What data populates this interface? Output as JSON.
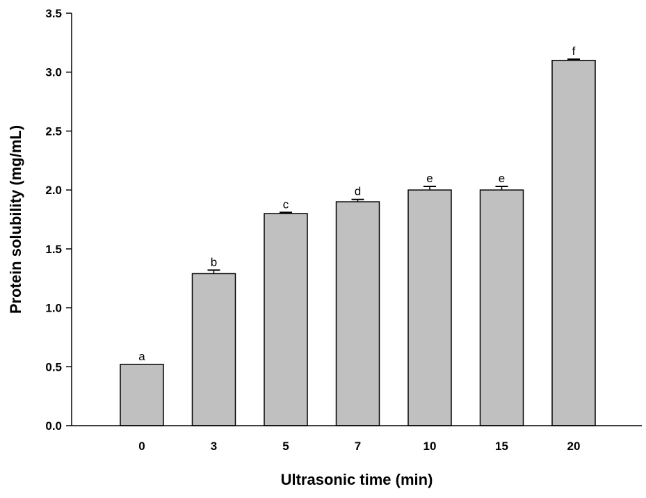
{
  "chart_data": {
    "type": "bar",
    "title": "",
    "xlabel": "Ultrasonic time (min)",
    "ylabel": "Protein solubility (mg/mL)",
    "categories": [
      "0",
      "3",
      "5",
      "7",
      "10",
      "15",
      "20"
    ],
    "values": [
      0.52,
      1.29,
      1.8,
      1.9,
      2.0,
      2.0,
      3.1
    ],
    "errors": [
      0.0,
      0.03,
      0.01,
      0.02,
      0.03,
      0.03,
      0.01
    ],
    "significance_labels": [
      "a",
      "b",
      "c",
      "d",
      "e",
      "e",
      "f"
    ],
    "ylim": [
      0,
      3.5
    ],
    "yticks": [
      "0.0",
      "0.5",
      "1.0",
      "1.5",
      "2.0",
      "2.5",
      "3.0",
      "3.5"
    ],
    "grid": false,
    "bar_color": "#c0c0c0",
    "edge_color": "#000000"
  }
}
